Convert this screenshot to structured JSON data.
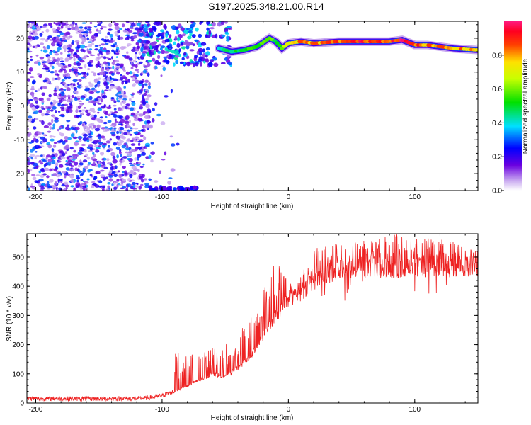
{
  "title": "S197.2025.348.21.00.R14",
  "colors": {
    "snr_line": "#ee2222",
    "frame": "#000000",
    "background": "#ffffff"
  },
  "chart_data": [
    {
      "type": "heatmap",
      "title": "S197.2025.348.21.00.R14",
      "xlabel": "Height of straight line (km)",
      "ylabel": "Frequency (Hz)",
      "xlim": [
        -207,
        150
      ],
      "ylim": [
        -25,
        25
      ],
      "xticks": [
        -200,
        -100,
        0,
        100
      ],
      "yticks": [
        -20,
        -10,
        0,
        10,
        20
      ],
      "colorbar": {
        "label": "Normalized spectral amplitude",
        "range": [
          0,
          1
        ],
        "ticks": [
          0.0,
          0.2,
          0.4,
          0.6,
          0.8
        ],
        "colormap": "rainbow (white-violet-blue-cyan-green-yellow-red-magenta)"
      },
      "ridge": {
        "description": "dominant frequency line",
        "x": [
          -55,
          -45,
          -35,
          -25,
          -15,
          -10,
          -5,
          0,
          10,
          20,
          40,
          60,
          80,
          90,
          100,
          110,
          130,
          150
        ],
        "freq": [
          17,
          16,
          16.5,
          17.5,
          20,
          19,
          17,
          18.5,
          19,
          18.5,
          19,
          19,
          19,
          19.5,
          18,
          18,
          17,
          16.5
        ],
        "amplitude": [
          0.4,
          0.5,
          0.55,
          0.6,
          0.6,
          0.55,
          0.6,
          0.75,
          0.85,
          0.85,
          0.9,
          0.95,
          0.95,
          1.0,
          0.9,
          0.85,
          0.85,
          0.8
        ]
      },
      "noise_region_x": [
        -207,
        -110
      ],
      "noise_amplitude_range": [
        0.05,
        0.35
      ]
    },
    {
      "type": "line",
      "xlabel": "Height of straight line (km)",
      "ylabel": "SNR (10 * v/v)",
      "xlim": [
        -207,
        150
      ],
      "ylim": [
        0,
        580
      ],
      "xticks": [
        -200,
        -100,
        0,
        100
      ],
      "yticks": [
        0,
        100,
        200,
        300,
        400,
        500
      ],
      "series": [
        {
          "name": "SNR",
          "x": [
            -207,
            -180,
            -160,
            -140,
            -120,
            -110,
            -100,
            -90,
            -80,
            -70,
            -60,
            -50,
            -40,
            -30,
            -20,
            -10,
            0,
            10,
            20,
            30,
            40,
            50,
            60,
            80,
            100,
            120,
            140,
            150
          ],
          "values": [
            15,
            15,
            15,
            15,
            15,
            18,
            25,
            40,
            60,
            80,
            100,
            90,
            120,
            160,
            230,
            300,
            350,
            380,
            420,
            440,
            460,
            460,
            465,
            465,
            465,
            465,
            470,
            470
          ]
        }
      ],
      "spike_peaks": {
        "x": [
          -75,
          -45,
          -25,
          -10,
          5,
          20,
          40,
          60,
          80,
          90,
          110,
          130
        ],
        "values": [
          170,
          210,
          330,
          490,
          390,
          530,
          550,
          560,
          575,
          580,
          570,
          555
        ]
      }
    }
  ]
}
